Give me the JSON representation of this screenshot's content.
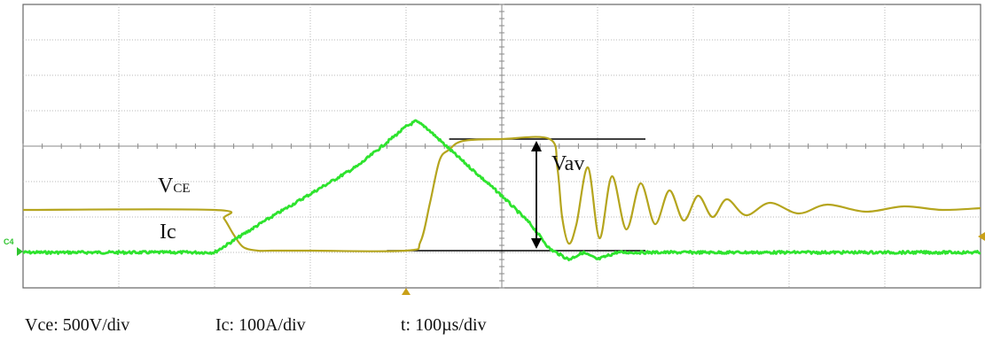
{
  "chart_data": {
    "type": "line",
    "x": [
      0,
      1,
      2,
      3,
      4,
      5,
      6,
      7,
      8,
      9,
      10
    ],
    "xlim": [
      0,
      10
    ],
    "ylim": [
      -4,
      4
    ],
    "grid": true,
    "series": [
      {
        "name": "VCE",
        "color": "#b5a51e",
        "x": [
          0,
          2.0,
          2.1,
          2.2,
          2.3,
          2.45,
          2.6,
          3.0,
          4.0,
          4.15,
          4.25,
          4.35,
          4.45,
          4.6,
          5.0,
          5.5,
          5.58,
          5.63,
          5.7,
          5.78,
          5.9,
          6.02,
          6.15,
          6.3,
          6.45,
          6.6,
          6.75,
          6.9,
          7.05,
          7.2,
          7.35,
          7.55,
          7.8,
          8.1,
          8.4,
          8.8,
          9.2,
          9.6,
          10
        ],
        "y": [
          -1.8,
          -1.8,
          -2.05,
          -2.5,
          -2.85,
          -2.95,
          -2.95,
          -2.95,
          -2.95,
          -2.7,
          -1.6,
          -0.4,
          -0.1,
          0.15,
          0.2,
          0.2,
          -0.6,
          -2.0,
          -2.75,
          -2.2,
          -0.6,
          -2.6,
          -0.85,
          -2.35,
          -1.05,
          -2.2,
          -1.25,
          -2.1,
          -1.4,
          -2.0,
          -1.5,
          -1.95,
          -1.6,
          -1.9,
          -1.65,
          -1.85,
          -1.7,
          -1.8,
          -1.75
        ]
      },
      {
        "name": "Ic",
        "color": "#2ee32e",
        "x": [
          0,
          2.0,
          2.5,
          3.0,
          3.5,
          4.0,
          4.1,
          4.2,
          4.5,
          5.0,
          5.3,
          5.5,
          5.7,
          5.85,
          6.0,
          6.2,
          6.5,
          7.0,
          10
        ],
        "y": [
          -3.0,
          -3.0,
          -2.15,
          -1.35,
          -0.55,
          0.55,
          0.7,
          0.55,
          -0.2,
          -1.4,
          -2.2,
          -2.9,
          -3.2,
          -3.0,
          -3.2,
          -3.0,
          -3.0,
          -3.0,
          -3.0
        ]
      }
    ],
    "annotations": {
      "vce": "V",
      "vce_sub": "CE",
      "ic": "Ic",
      "vav": "Vav",
      "channel": "C4"
    }
  },
  "footer": {
    "vce_scale": "Vce: 500V/div",
    "ic_scale": "Ic: 100A/div",
    "time_scale": "t: 100µs/div"
  }
}
